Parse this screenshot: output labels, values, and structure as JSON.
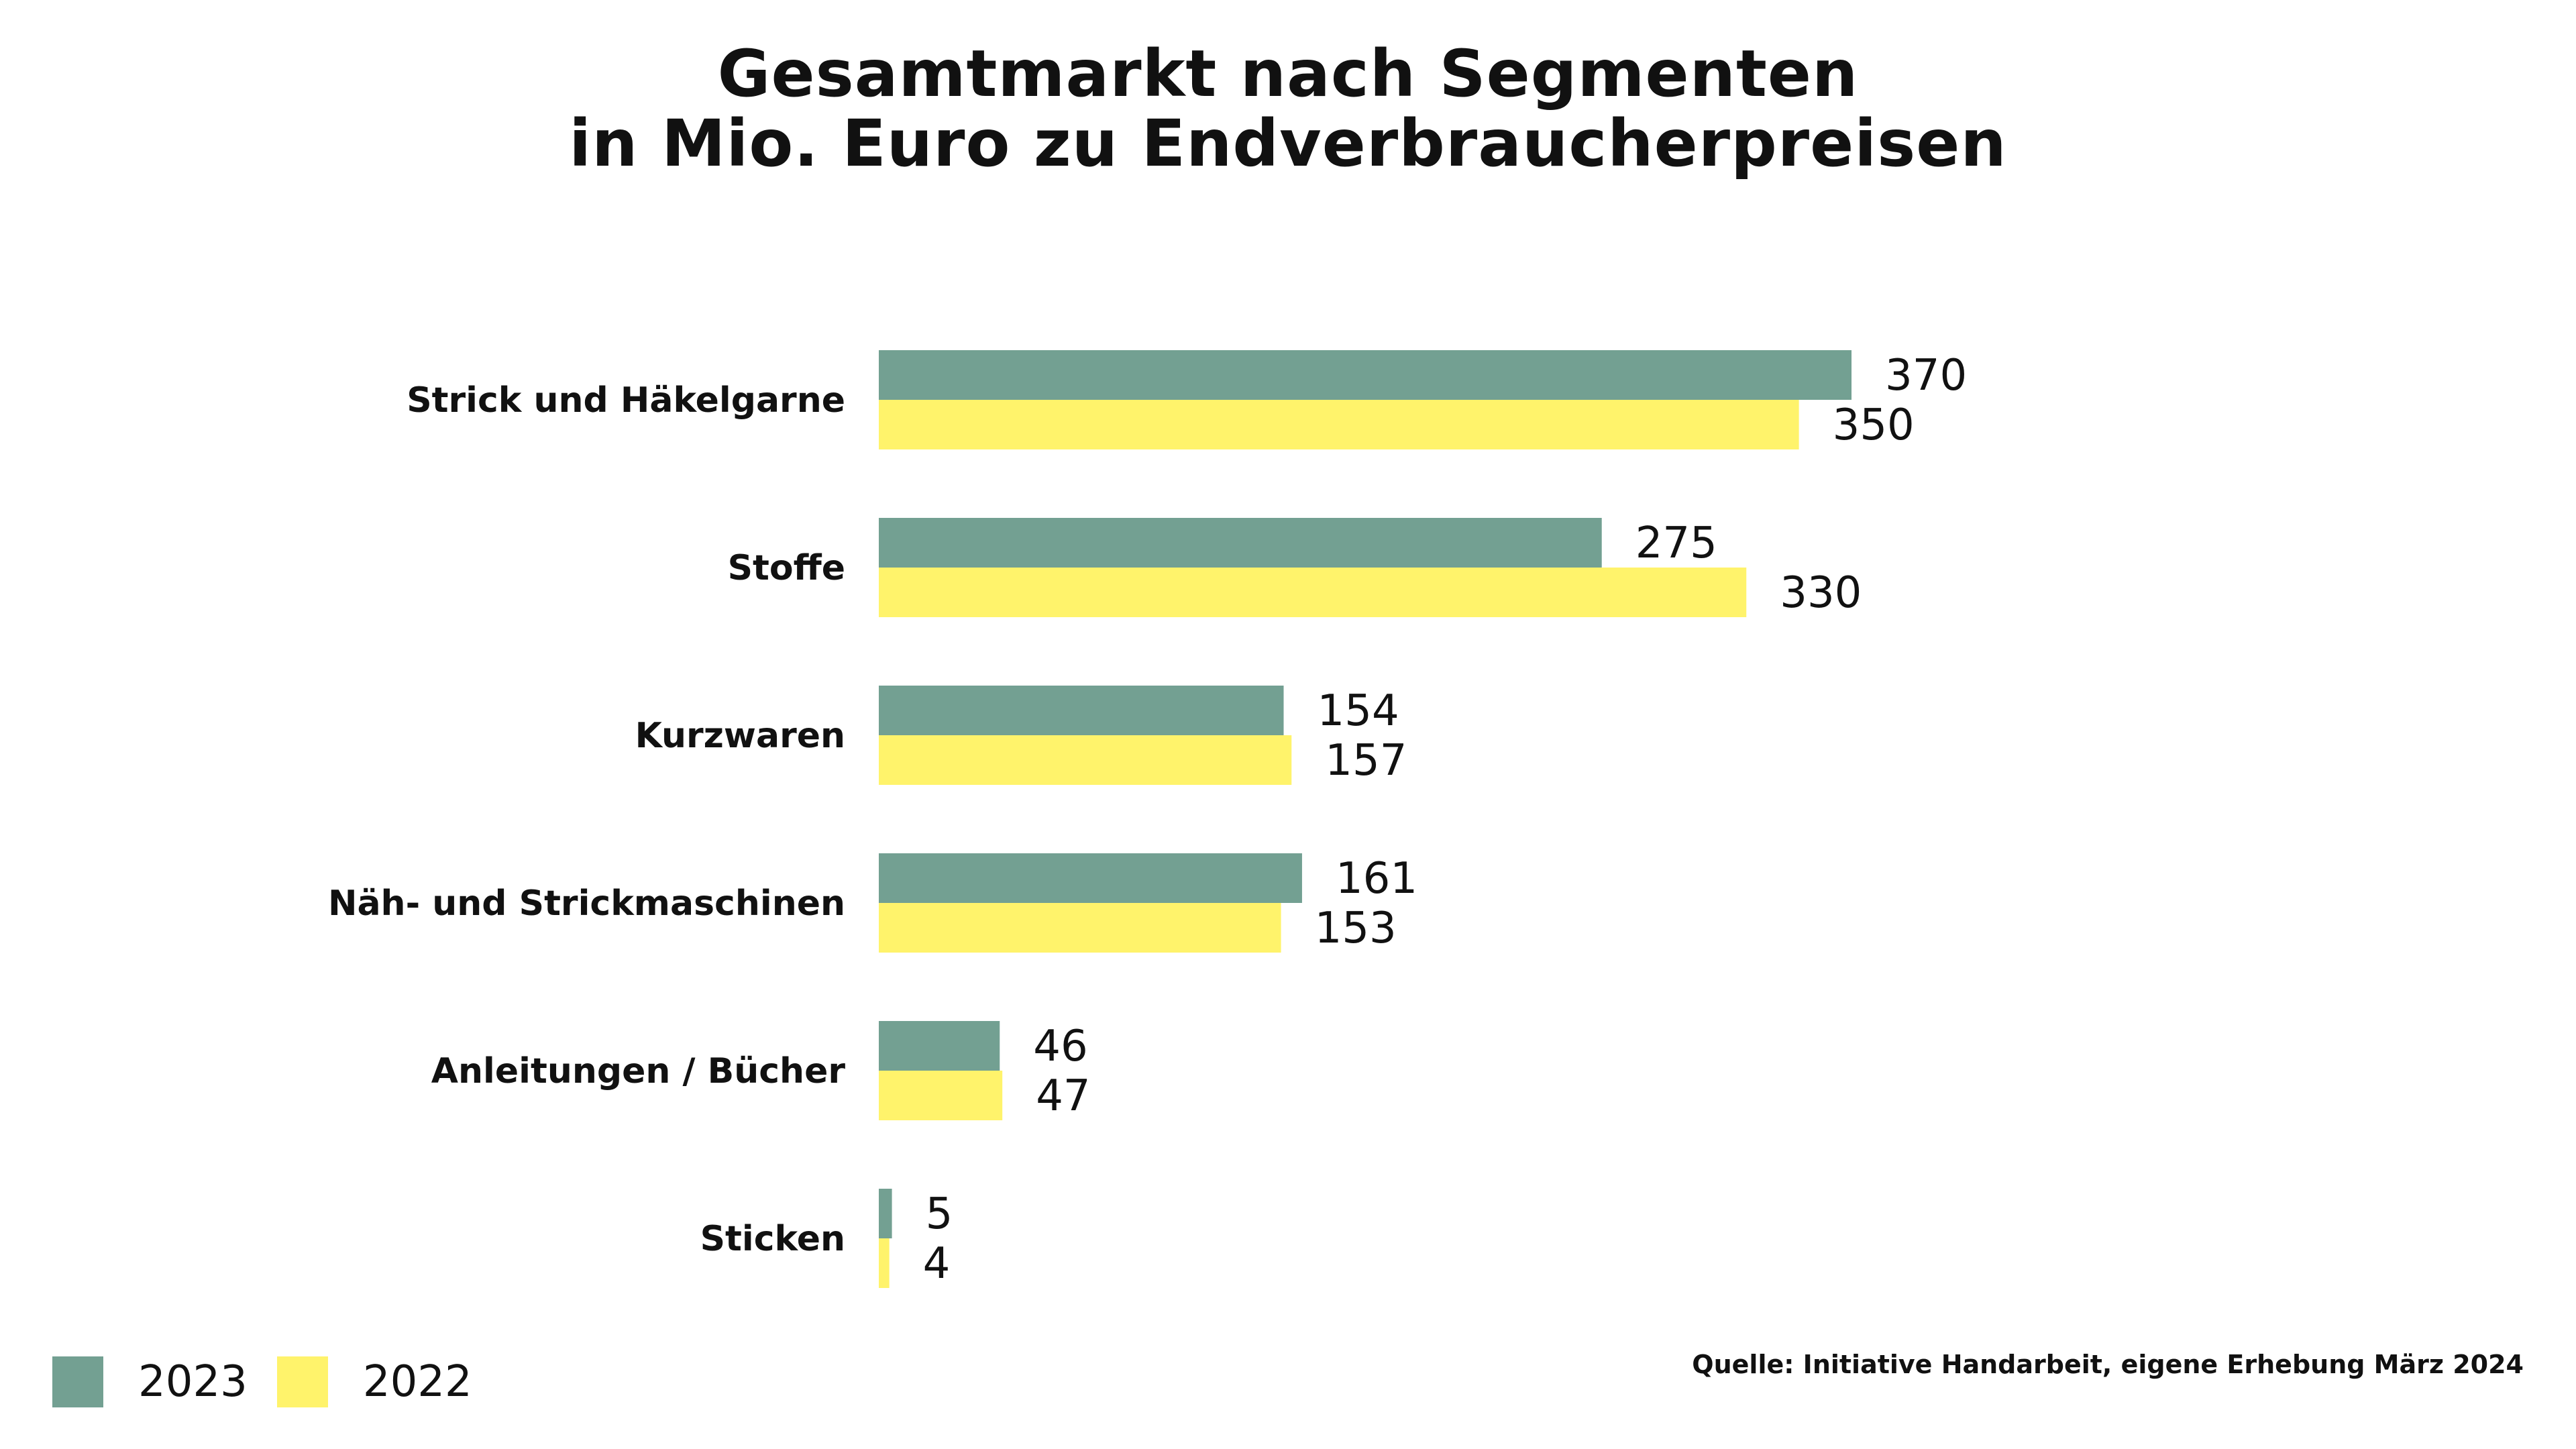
{
  "title_line1": "Gesamtmarkt nach Segmenten",
  "title_line2": "in Mio. Euro zu Endverbraucherpreisen",
  "source": "Quelle: Initiative Handarbeit, eigene Erhebung März 2024",
  "colors": {
    "2023": "#73a092",
    "2022": "#fff36b"
  },
  "legend": [
    {
      "label": "2023",
      "color": "#73a092"
    },
    {
      "label": "2022",
      "color": "#fff36b"
    }
  ],
  "chart_data": {
    "type": "bar",
    "orientation": "horizontal",
    "title": "Gesamtmarkt nach Segmenten in Mio. Euro zu Endverbraucherpreisen",
    "categories": [
      "Strick und Häkelgarne",
      "Stoffe",
      "Kurzwaren",
      "Näh- und Strickmaschinen",
      "Anleitungen / Bücher",
      "Sticken"
    ],
    "series": [
      {
        "name": "2023",
        "values": [
          370,
          275,
          154,
          161,
          46,
          5
        ]
      },
      {
        "name": "2022",
        "values": [
          350,
          330,
          157,
          153,
          47,
          4
        ]
      }
    ],
    "xlim": [
      0,
      370
    ],
    "grid": false,
    "legend_position": "bottom-left"
  }
}
